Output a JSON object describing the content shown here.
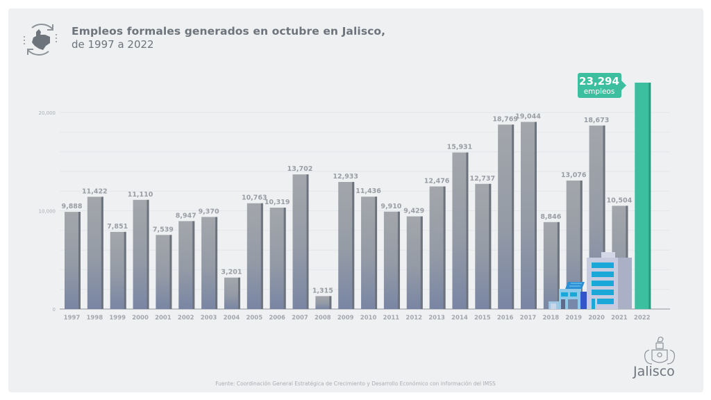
{
  "header": {
    "title": "Empleos formales generados en octubre en Jalisco,",
    "subtitle": "de 1997 a 2022"
  },
  "icons": {
    "top_left": "jalisco-map-cycle-icon",
    "bottom_right": "jalisco-coat-of-arms-icon",
    "illustration": "office-buildings-icon"
  },
  "footer": {
    "source": "Fuente: Coordinación General Estratégica de Crecimiento y Desarrollo Económico con información del IMSS",
    "brand": "Jalisco"
  },
  "colors": {
    "bar_top": "#a3a6ab",
    "bar_bottom": "#7985a3",
    "bar_side": "#6d737c",
    "highlight": "#3cbf9e",
    "highlight_side": "#2a9a7e",
    "label": "#9a9ea4",
    "panel": "#eef0f2"
  },
  "chart_data": {
    "type": "bar",
    "title": "Empleos formales generados en octubre en Jalisco, de 1997 a 2022",
    "xlabel": "",
    "ylabel": "",
    "ylim": [
      0,
      20000
    ],
    "yticks": [
      0,
      10000,
      20000
    ],
    "ytick_labels": [
      "0",
      "10,000",
      "20,000"
    ],
    "grid": true,
    "categories": [
      "1997",
      "1998",
      "1999",
      "2000",
      "2001",
      "2002",
      "2003",
      "2004",
      "2005",
      "2006",
      "2007",
      "2008",
      "2009",
      "2010",
      "2011",
      "2012",
      "2013",
      "2014",
      "2015",
      "2016",
      "2017",
      "2018",
      "2019",
      "2020",
      "2021",
      "2022"
    ],
    "values": [
      9888,
      11422,
      7851,
      11110,
      7539,
      8947,
      9370,
      3201,
      10763,
      10319,
      13702,
      1315,
      12933,
      11436,
      9910,
      9429,
      12476,
      15931,
      12737,
      18769,
      19044,
      8846,
      13076,
      18673,
      10504,
      23294
    ],
    "value_labels": [
      "9,888",
      "11,422",
      "7,851",
      "11,110",
      "7,539",
      "8,947",
      "9,370",
      "3,201",
      "10,763",
      "10,319",
      "13,702",
      "1,315",
      "12,933",
      "11,436",
      "9,910",
      "9,429",
      "12,476",
      "15,931",
      "12,737",
      "18,769",
      "19,044",
      "8,846",
      "13,076",
      "18,673",
      "10,504",
      "23,294"
    ],
    "highlight": {
      "category": "2022",
      "value_label": "23,294",
      "unit_label": "empleos"
    }
  }
}
